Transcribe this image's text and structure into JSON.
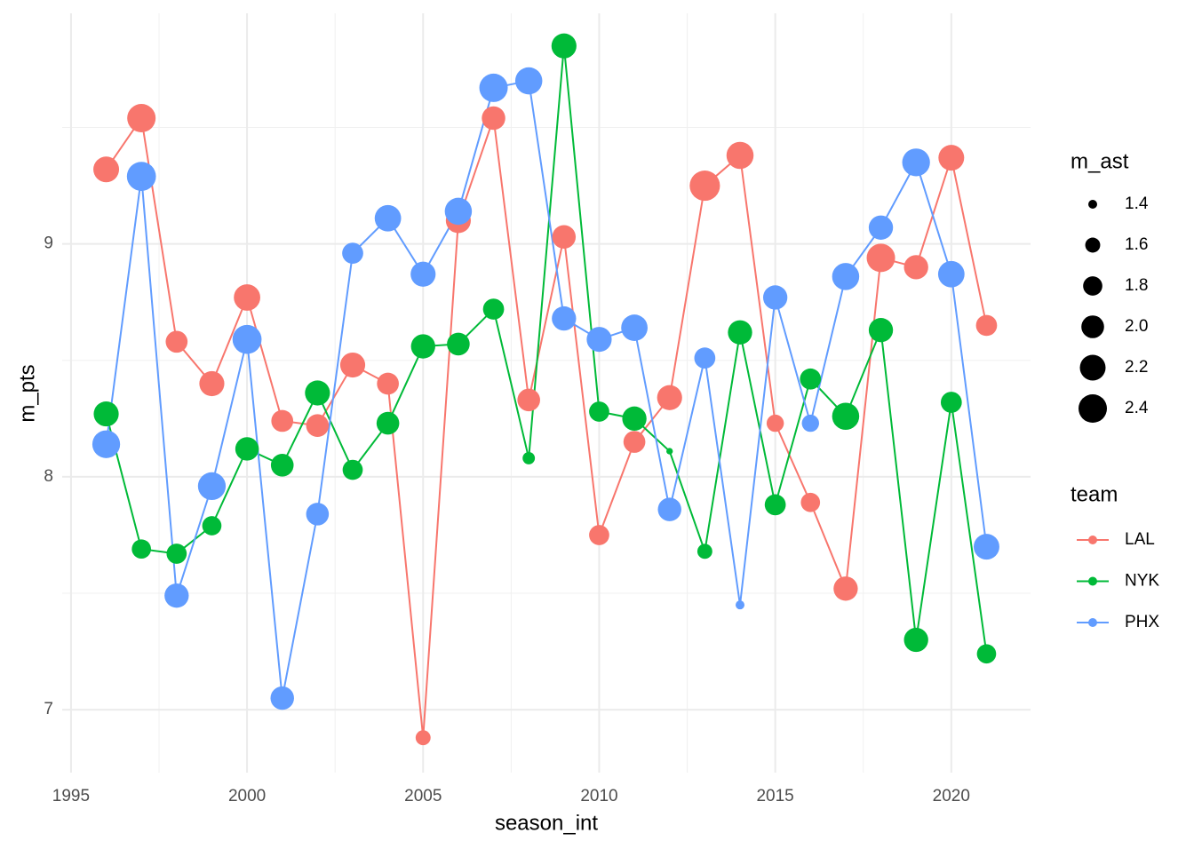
{
  "chart_data": {
    "type": "line",
    "x_label": "season_int",
    "y_label": "m_pts",
    "x": [
      1996,
      1997,
      1998,
      1999,
      2000,
      2001,
      2002,
      2003,
      2004,
      2005,
      2006,
      2007,
      2008,
      2009,
      2010,
      2011,
      2012,
      2013,
      2014,
      2015,
      2016,
      2017,
      2018,
      2019,
      2020,
      2021
    ],
    "series": [
      {
        "name": "LAL",
        "color": "#F8766D",
        "values": [
          9.32,
          9.54,
          8.58,
          8.4,
          8.77,
          8.24,
          8.22,
          8.48,
          8.4,
          6.88,
          9.1,
          9.54,
          8.33,
          9.03,
          7.75,
          8.15,
          8.34,
          9.25,
          9.38,
          8.23,
          7.89,
          7.52,
          8.94,
          8.9,
          9.37,
          8.65
        ],
        "sizes": [
          2.2,
          2.4,
          1.95,
          2.15,
          2.25,
          1.95,
          2.0,
          2.15,
          1.95,
          1.6,
          2.15,
          2.05,
          2.0,
          2.05,
          1.85,
          1.95,
          2.15,
          2.55,
          2.3,
          1.7,
          1.8,
          2.1,
          2.4,
          2.1,
          2.2,
          1.9
        ]
      },
      {
        "name": "NYK",
        "color": "#00BA38",
        "values": [
          8.27,
          7.69,
          7.67,
          7.79,
          8.12,
          8.05,
          8.36,
          8.03,
          8.23,
          8.56,
          8.57,
          8.72,
          8.08,
          9.85,
          8.28,
          8.25,
          8.11,
          7.68,
          8.62,
          7.88,
          8.42,
          8.26,
          8.63,
          7.3,
          8.32,
          7.24
        ],
        "sizes": [
          2.15,
          1.8,
          1.85,
          1.8,
          2.05,
          2.0,
          2.15,
          1.85,
          2.0,
          2.1,
          2.0,
          1.9,
          1.5,
          2.15,
          1.85,
          2.1,
          1.35,
          1.6,
          2.1,
          1.9,
          1.9,
          2.3,
          2.1,
          2.1,
          1.9,
          1.8
        ]
      },
      {
        "name": "PHX",
        "color": "#619CFF",
        "values": [
          8.14,
          9.29,
          7.49,
          7.96,
          8.59,
          7.05,
          7.84,
          8.96,
          9.11,
          8.87,
          9.14,
          9.67,
          9.7,
          8.68,
          8.59,
          8.64,
          7.86,
          8.51,
          7.45,
          8.77,
          8.23,
          8.86,
          9.07,
          9.35,
          8.87,
          7.7
        ],
        "sizes": [
          2.35,
          2.45,
          2.1,
          2.35,
          2.45,
          2.05,
          2.0,
          1.9,
          2.25,
          2.15,
          2.3,
          2.4,
          2.3,
          2.1,
          2.15,
          2.25,
          2.05,
          1.9,
          1.4,
          2.1,
          1.7,
          2.3,
          2.1,
          2.35,
          2.25,
          2.2
        ]
      }
    ],
    "xlim": [
      1994.75,
      2022.25
    ],
    "xticks": [
      1995,
      2000,
      2005,
      2010,
      2015,
      2020
    ],
    "ylim": [
      6.73,
      9.99
    ],
    "yticks": [
      7,
      8,
      9
    ],
    "grid": true,
    "size_legend": {
      "title": "m_ast",
      "sizes": [
        1.4,
        1.6,
        1.8,
        {
          "value": 2.0,
          "label": "2.0"
        },
        2.2,
        2.4
      ]
    },
    "color_legend_title": "team",
    "legend": "right"
  }
}
